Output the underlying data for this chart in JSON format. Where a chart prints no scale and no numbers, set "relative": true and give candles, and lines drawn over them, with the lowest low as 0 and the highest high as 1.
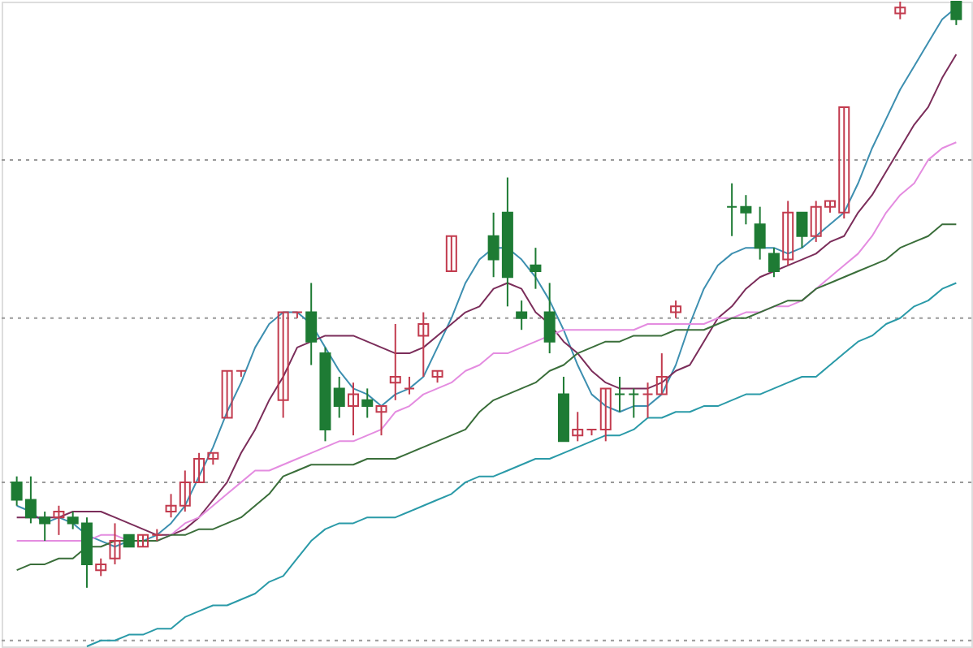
{
  "chart_data": {
    "type": "candlestick",
    "relative": true,
    "categories": [
      null,
      null,
      null,
      null,
      null,
      null,
      null,
      null,
      null,
      null,
      null,
      null,
      null,
      null,
      null,
      null,
      null,
      null,
      null,
      null,
      null,
      null,
      null,
      null,
      null,
      null,
      null,
      null,
      null,
      null,
      null,
      null,
      null,
      null,
      null,
      null,
      null,
      null,
      null,
      null,
      null,
      null,
      null,
      null,
      null,
      null,
      null,
      null,
      null,
      null,
      null,
      null,
      null,
      null,
      null,
      null,
      null,
      null,
      null,
      null,
      null,
      null,
      null,
      null,
      null,
      null,
      null,
      null
    ],
    "ohlc": [
      [
        0.18,
        0.19,
        0.14,
        0.15
      ],
      [
        0.15,
        0.19,
        0.11,
        0.12
      ],
      [
        0.12,
        0.13,
        0.08,
        0.11
      ],
      [
        0.12,
        0.14,
        0.09,
        0.13
      ],
      [
        0.12,
        0.13,
        0.1,
        0.11
      ],
      [
        0.11,
        0.12,
        0.0,
        0.04
      ],
      [
        0.03,
        0.05,
        0.02,
        0.04
      ],
      [
        0.05,
        0.11,
        0.04,
        0.08
      ],
      [
        0.09,
        0.09,
        0.07,
        0.07
      ],
      [
        0.07,
        0.09,
        0.07,
        0.09
      ],
      [
        0.09,
        0.1,
        0.08,
        0.09
      ],
      [
        0.13,
        0.16,
        0.12,
        0.14
      ],
      [
        0.14,
        0.2,
        0.13,
        0.18
      ],
      [
        0.18,
        0.23,
        0.18,
        0.22
      ],
      [
        0.22,
        0.23,
        0.21,
        0.23
      ],
      [
        0.29,
        0.37,
        0.29,
        0.37
      ],
      [
        0.37,
        0.37,
        0.36,
        0.37
      ],
      null,
      null,
      [
        0.32,
        0.47,
        0.29,
        0.47
      ],
      [
        0.47,
        0.47,
        0.46,
        0.47
      ],
      [
        0.47,
        0.52,
        0.38,
        0.42
      ],
      [
        0.4,
        0.41,
        0.25,
        0.27
      ],
      [
        0.34,
        0.36,
        0.29,
        0.31
      ],
      [
        0.31,
        0.35,
        0.26,
        0.33
      ],
      [
        0.32,
        0.34,
        0.29,
        0.31
      ],
      [
        0.3,
        0.31,
        0.26,
        0.31
      ],
      [
        0.35,
        0.45,
        0.32,
        0.36
      ],
      [
        0.34,
        0.36,
        0.33,
        0.34
      ],
      [
        0.43,
        0.47,
        0.36,
        0.45
      ],
      [
        0.36,
        0.37,
        0.35,
        0.37
      ],
      [
        0.54,
        0.6,
        0.54,
        0.6
      ],
      null,
      null,
      [
        0.6,
        0.64,
        0.53,
        0.56
      ],
      [
        0.64,
        0.7,
        0.48,
        0.53
      ],
      [
        0.47,
        0.49,
        0.44,
        0.46
      ],
      [
        0.55,
        0.58,
        0.51,
        0.54
      ],
      [
        0.47,
        0.52,
        0.4,
        0.42
      ],
      [
        0.33,
        0.36,
        0.25,
        0.25
      ],
      [
        0.26,
        0.3,
        0.25,
        0.27
      ],
      [
        0.27,
        0.27,
        0.26,
        0.27
      ],
      [
        0.27,
        0.34,
        0.25,
        0.34
      ],
      [
        0.33,
        0.36,
        0.3,
        0.33
      ],
      [
        0.33,
        0.34,
        0.29,
        0.33
      ],
      [
        0.33,
        0.35,
        0.29,
        0.33
      ],
      [
        0.33,
        0.4,
        0.33,
        0.36
      ],
      [
        0.47,
        0.49,
        0.46,
        0.48
      ],
      null,
      null,
      null,
      [
        0.65,
        0.69,
        0.6,
        0.65
      ],
      [
        0.65,
        0.67,
        0.62,
        0.64
      ],
      [
        0.62,
        0.65,
        0.56,
        0.58
      ],
      [
        0.57,
        0.58,
        0.53,
        0.54
      ],
      [
        0.56,
        0.66,
        0.55,
        0.64
      ],
      [
        0.64,
        0.64,
        0.58,
        0.6
      ],
      [
        0.6,
        0.66,
        0.59,
        0.65
      ],
      [
        0.65,
        0.66,
        0.64,
        0.66
      ],
      [
        0.64,
        0.82,
        0.63,
        0.82
      ],
      null,
      null,
      null,
      [
        0.98,
        1.0,
        0.97,
        0.99
      ],
      null,
      null,
      null,
      [
        1.0,
        1.0,
        0.96,
        0.97
      ]
    ],
    "colors": [
      "#1e7b34",
      "#1e7b34",
      "#1e7b34",
      "#c23b4e",
      "#1e7b34",
      "#1e7b34",
      "#c23b4e",
      "#c23b4e",
      "#1e7b34",
      "#c23b4e",
      "#c23b4e",
      "#c23b4e",
      "#c23b4e",
      "#c23b4e",
      "#c23b4e",
      "#c23b4e",
      "#c23b4e",
      null,
      null,
      "#c23b4e",
      "#c23b4e",
      "#1e7b34",
      "#1e7b34",
      "#1e7b34",
      "#c23b4e",
      "#1e7b34",
      "#c23b4e",
      "#c23b4e",
      "#c23b4e",
      "#c23b4e",
      "#c23b4e",
      "#c23b4e",
      null,
      null,
      "#1e7b34",
      "#1e7b34",
      "#1e7b34",
      "#1e7b34",
      "#1e7b34",
      "#1e7b34",
      "#c23b4e",
      "#c23b4e",
      "#c23b4e",
      "#1e7b34",
      "#1e7b34",
      "#c23b4e",
      "#c23b4e",
      "#c23b4e",
      null,
      null,
      null,
      "#1e7b34",
      "#1e7b34",
      "#1e7b34",
      "#1e7b34",
      "#c23b4e",
      "#1e7b34",
      "#c23b4e",
      "#c23b4e",
      "#c23b4e",
      null,
      null,
      null,
      "#c23b4e",
      null,
      null,
      null,
      "#1e7b34"
    ],
    "series": [
      {
        "type": "line",
        "color": "#3d8fb0",
        "values": [
          0.14,
          0.13,
          0.11,
          0.12,
          0.11,
          0.09,
          0.08,
          0.07,
          0.08,
          0.08,
          0.09,
          0.11,
          0.14,
          0.19,
          0.24,
          0.3,
          0.35,
          0.41,
          0.45,
          0.47,
          0.47,
          0.45,
          0.41,
          0.37,
          0.34,
          0.33,
          0.31,
          0.33,
          0.34,
          0.36,
          0.41,
          0.46,
          0.52,
          0.56,
          0.58,
          0.58,
          0.56,
          0.53,
          0.49,
          0.44,
          0.38,
          0.33,
          0.31,
          0.3,
          0.31,
          0.31,
          0.33,
          0.38,
          0.45,
          0.51,
          0.55,
          0.57,
          0.58,
          0.58,
          0.58,
          0.57,
          0.58,
          0.6,
          0.62,
          0.64,
          0.69,
          0.75,
          0.8,
          0.85,
          0.89,
          0.93,
          0.97,
          0.99
        ]
      },
      {
        "type": "line",
        "color": "#7b2d5a",
        "values": [
          0.12,
          0.12,
          0.12,
          0.12,
          0.13,
          0.13,
          0.13,
          0.12,
          0.11,
          0.1,
          0.09,
          0.09,
          0.1,
          0.12,
          0.15,
          0.18,
          0.23,
          0.27,
          0.32,
          0.36,
          0.41,
          0.42,
          0.43,
          0.43,
          0.43,
          0.42,
          0.41,
          0.4,
          0.4,
          0.41,
          0.43,
          0.45,
          0.47,
          0.48,
          0.51,
          0.52,
          0.51,
          0.47,
          0.45,
          0.42,
          0.4,
          0.37,
          0.35,
          0.34,
          0.34,
          0.34,
          0.35,
          0.37,
          0.38,
          0.42,
          0.46,
          0.48,
          0.51,
          0.53,
          0.54,
          0.55,
          0.56,
          0.57,
          0.59,
          0.6,
          0.64,
          0.67,
          0.71,
          0.75,
          0.79,
          0.82,
          0.87,
          0.91
        ]
      },
      {
        "type": "line",
        "color": "#e48ce0",
        "values": [
          0.08,
          0.08,
          0.08,
          0.08,
          0.08,
          0.08,
          0.09,
          0.09,
          0.08,
          0.08,
          0.08,
          0.09,
          0.11,
          0.12,
          0.14,
          0.16,
          0.18,
          0.2,
          0.2,
          0.21,
          0.22,
          0.23,
          0.24,
          0.25,
          0.25,
          0.26,
          0.27,
          0.3,
          0.31,
          0.33,
          0.34,
          0.35,
          0.37,
          0.38,
          0.4,
          0.4,
          0.41,
          0.42,
          0.43,
          0.44,
          0.44,
          0.44,
          0.44,
          0.44,
          0.44,
          0.45,
          0.45,
          0.45,
          0.45,
          0.45,
          0.46,
          0.46,
          0.47,
          0.47,
          0.48,
          0.48,
          0.49,
          0.51,
          0.53,
          0.55,
          0.57,
          0.6,
          0.64,
          0.67,
          0.69,
          0.73,
          0.75,
          0.76
        ]
      },
      {
        "type": "line",
        "color": "#3a6e3a",
        "values": [
          0.03,
          0.04,
          0.04,
          0.05,
          0.05,
          0.07,
          0.07,
          0.08,
          0.08,
          0.08,
          0.08,
          0.09,
          0.09,
          0.1,
          0.1,
          0.11,
          0.12,
          0.14,
          0.16,
          0.19,
          0.2,
          0.21,
          0.21,
          0.21,
          0.21,
          0.22,
          0.22,
          0.22,
          0.23,
          0.24,
          0.25,
          0.26,
          0.27,
          0.3,
          0.32,
          0.33,
          0.34,
          0.35,
          0.37,
          0.38,
          0.4,
          0.41,
          0.42,
          0.42,
          0.43,
          0.43,
          0.43,
          0.44,
          0.44,
          0.44,
          0.45,
          0.46,
          0.46,
          0.47,
          0.48,
          0.49,
          0.49,
          0.51,
          0.52,
          0.53,
          0.54,
          0.55,
          0.56,
          0.58,
          0.59,
          0.6,
          0.62,
          0.62
        ]
      },
      {
        "type": "line",
        "color": "#2a9aa8",
        "values": [
          null,
          null,
          null,
          null,
          null,
          -0.1,
          -0.09,
          -0.09,
          -0.08,
          -0.08,
          -0.07,
          -0.07,
          -0.05,
          -0.04,
          -0.03,
          -0.03,
          -0.02,
          -0.01,
          0.01,
          0.02,
          0.05,
          0.08,
          0.1,
          0.11,
          0.11,
          0.12,
          0.12,
          0.12,
          0.13,
          0.14,
          0.15,
          0.16,
          0.18,
          0.19,
          0.19,
          0.2,
          0.21,
          0.22,
          0.22,
          0.23,
          0.24,
          0.25,
          0.26,
          0.26,
          0.27,
          0.29,
          0.29,
          0.3,
          0.3,
          0.31,
          0.31,
          0.32,
          0.33,
          0.33,
          0.34,
          0.35,
          0.36,
          0.36,
          0.38,
          0.4,
          0.42,
          0.43,
          0.45,
          0.46,
          0.48,
          0.49,
          0.51,
          0.52
        ]
      }
    ],
    "ref_lines": [
      {
        "axis": "y",
        "value": 0.73,
        "color": "#9a9a9a",
        "line_style": "dotted"
      },
      {
        "axis": "y",
        "value": 0.46,
        "color": "#9a9a9a",
        "line_style": "dotted"
      },
      {
        "axis": "y",
        "value": 0.18,
        "color": "#9a9a9a",
        "line_style": "dotted"
      },
      {
        "axis": "y",
        "value": -0.09,
        "color": "#9a9a9a",
        "line_style": "dotted"
      }
    ]
  }
}
